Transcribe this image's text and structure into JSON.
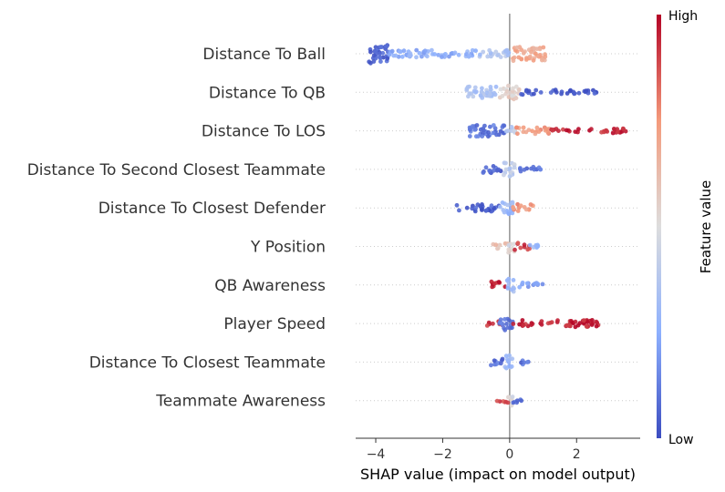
{
  "chart_data": {
    "type": "scatter",
    "subtype": "shap_beeswarm",
    "title": "",
    "xlabel": "SHAP value (impact on model output)",
    "ylabel": "",
    "xlim": [
      -4.6,
      3.9
    ],
    "xticks": [
      -4,
      -2,
      0,
      2
    ],
    "xtick_labels": [
      "−4",
      "−2",
      "0",
      "2"
    ],
    "colorbar": {
      "label": "Feature value",
      "high_label": "High",
      "low_label": "Low",
      "colors": [
        "#3b4cc0",
        "#8db0fe",
        "#dddddd",
        "#f49a7b",
        "#b40426"
      ]
    },
    "zero_line_color": "#999999",
    "features": [
      {
        "name": "Distance To Ball",
        "low_range": [
          -4.0,
          0.6
        ],
        "high_range": [
          0.1,
          1.2
        ],
        "segments": [
          {
            "from": -4.2,
            "to": -3.6,
            "value": 0.05,
            "width": 4
          },
          {
            "from": -3.6,
            "to": -1.0,
            "value": 0.25,
            "width": 1.5
          },
          {
            "from": -1.0,
            "to": 0.0,
            "value": 0.35,
            "width": 1.5
          },
          {
            "from": 0.1,
            "to": 1.1,
            "value": 0.7,
            "width": 3
          }
        ]
      },
      {
        "name": "Distance To QB",
        "low_range": [
          -1.4,
          2.6
        ],
        "high_range": [
          -0.3,
          0.3
        ],
        "segments": [
          {
            "from": -1.4,
            "to": -0.4,
            "value": 0.35,
            "width": 2.5
          },
          {
            "from": -0.3,
            "to": 0.3,
            "value": 0.55,
            "width": 3
          },
          {
            "from": 0.3,
            "to": 2.6,
            "value": 0.03,
            "width": 1
          }
        ]
      },
      {
        "name": "Distance To LOS",
        "low_range": [
          -1.2,
          0.3
        ],
        "high_range": [
          0.2,
          3.5
        ],
        "segments": [
          {
            "from": -1.2,
            "to": -0.1,
            "value": 0.1,
            "width": 2.5
          },
          {
            "from": -0.1,
            "to": 0.2,
            "value": 0.4,
            "width": 2
          },
          {
            "from": 0.2,
            "to": 1.2,
            "value": 0.75,
            "width": 1.5
          },
          {
            "from": 1.2,
            "to": 3.5,
            "value": 0.95,
            "width": 1
          }
        ]
      },
      {
        "name": "Distance To Second Closest Teammate",
        "low_range": [
          -0.8,
          1.1
        ],
        "high_range": [
          -0.2,
          0.2
        ],
        "segments": [
          {
            "from": -0.8,
            "to": -0.2,
            "value": 0.05,
            "width": 1.5
          },
          {
            "from": -0.2,
            "to": 0.2,
            "value": 0.4,
            "width": 3
          },
          {
            "from": 0.2,
            "to": 1.1,
            "value": 0.1,
            "width": 1
          }
        ]
      },
      {
        "name": "Distance To Closest Defender",
        "low_range": [
          -1.6,
          0.1
        ],
        "high_range": [
          0.0,
          0.7
        ],
        "segments": [
          {
            "from": -1.6,
            "to": -0.3,
            "value": 0.05,
            "width": 1.5
          },
          {
            "from": -0.3,
            "to": 0.1,
            "value": 0.3,
            "width": 3
          },
          {
            "from": 0.1,
            "to": 0.7,
            "value": 0.75,
            "width": 1.5
          }
        ]
      },
      {
        "name": "Y Position",
        "low_range": [
          -0.5,
          0.9
        ],
        "high_range": [
          0.0,
          0.6
        ],
        "segments": [
          {
            "from": -0.5,
            "to": -0.05,
            "value": 0.6,
            "width": 1.5
          },
          {
            "from": -0.05,
            "to": 0.15,
            "value": 0.5,
            "width": 3
          },
          {
            "from": 0.15,
            "to": 0.6,
            "value": 0.9,
            "width": 1.5
          },
          {
            "from": 0.6,
            "to": 0.9,
            "value": 0.3,
            "width": 1
          }
        ]
      },
      {
        "name": "QB Awareness",
        "low_range": [
          -0.6,
          1.0
        ],
        "high_range": [
          -0.6,
          0.0
        ],
        "segments": [
          {
            "from": -0.6,
            "to": -0.1,
            "value": 0.95,
            "width": 1.5
          },
          {
            "from": -0.1,
            "to": 0.15,
            "value": 0.3,
            "width": 3
          },
          {
            "from": 0.15,
            "to": 1.0,
            "value": 0.2,
            "width": 1
          }
        ]
      },
      {
        "name": "Player Speed",
        "low_range": [
          -0.5,
          0.1
        ],
        "high_range": [
          -0.8,
          2.7
        ],
        "segments": [
          {
            "from": -0.8,
            "to": -0.2,
            "value": 0.9,
            "width": 1
          },
          {
            "from": -0.3,
            "to": 0.1,
            "value": 0.1,
            "width": 3
          },
          {
            "from": 0.1,
            "to": 2.7,
            "value": 0.95,
            "width": 1.5
          }
        ]
      },
      {
        "name": "Distance To Closest Teammate",
        "low_range": [
          -0.6,
          0.6
        ],
        "high_range": [
          -0.2,
          0.2
        ],
        "segments": [
          {
            "from": -0.6,
            "to": -0.15,
            "value": 0.1,
            "width": 1.5
          },
          {
            "from": -0.15,
            "to": 0.15,
            "value": 0.3,
            "width": 3
          },
          {
            "from": 0.15,
            "to": 0.6,
            "value": 0.1,
            "width": 1
          }
        ]
      },
      {
        "name": "Teammate Awareness",
        "low_range": [
          -0.1,
          0.4
        ],
        "high_range": [
          -0.4,
          0.0
        ],
        "segments": [
          {
            "from": -0.4,
            "to": -0.05,
            "value": 0.9,
            "width": 1
          },
          {
            "from": -0.05,
            "to": 0.1,
            "value": 0.5,
            "width": 2.5
          },
          {
            "from": 0.1,
            "to": 0.4,
            "value": 0.1,
            "width": 1
          }
        ]
      }
    ]
  }
}
